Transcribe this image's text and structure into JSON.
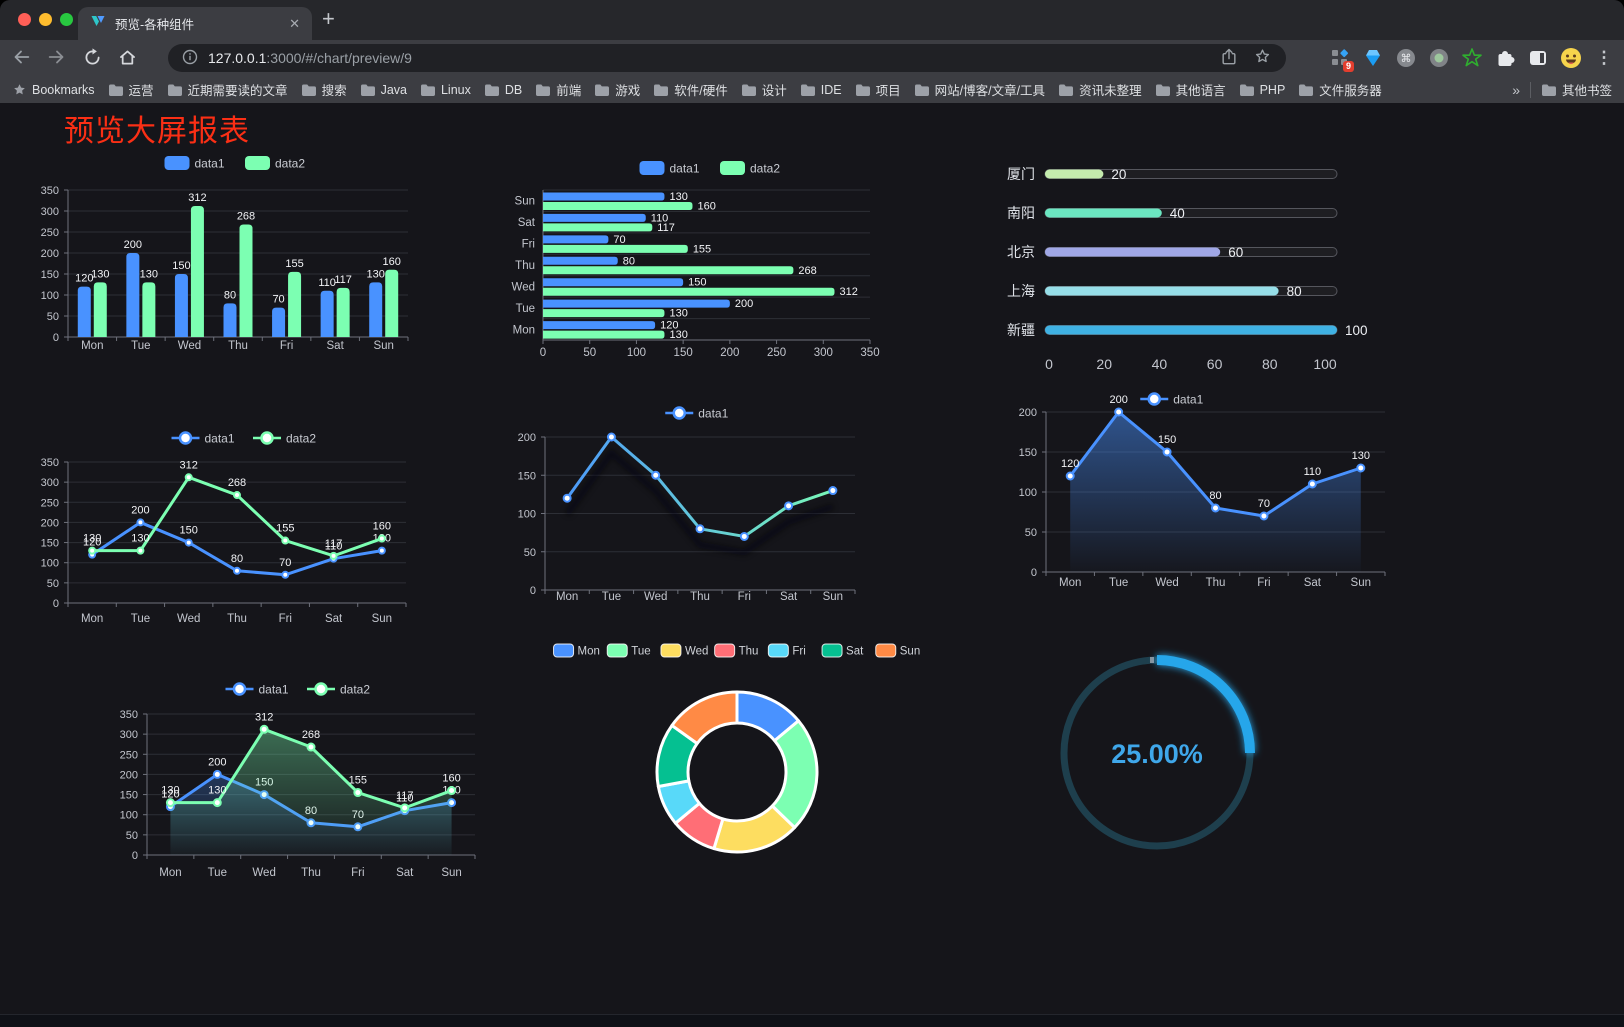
{
  "browser": {
    "window_controls": [
      "#ff5f57",
      "#febc2e",
      "#28c840"
    ],
    "tab": {
      "title": "预览-各种组件",
      "close_glyph": "✕",
      "new_tab_glyph": "+"
    },
    "address": {
      "host": "127.0.0.1",
      "rest": ":3000/#/chart/preview/9"
    },
    "bookmarks_label": "Bookmarks",
    "bookmarks": [
      "运营",
      "近期需要读的文章",
      "搜索",
      "Java",
      "Linux",
      "DB",
      "前端",
      "游戏",
      "软件/硬件",
      "设计",
      "IDE",
      "项目",
      "网站/博客/文章/工具",
      "资讯未整理",
      "其他语言",
      "PHP",
      "文件服务器"
    ],
    "overflow_glyph": "»",
    "other_bookmarks": "其他书签",
    "extension_badge": "9",
    "menu_glyph": "⋮"
  },
  "page": {
    "title": "预览大屏报表",
    "title_color": "#fb2f15",
    "background": "#15151a"
  },
  "chart_data": [
    {
      "id": "bar-vertical",
      "type": "bar",
      "title": "",
      "categories": [
        "Mon",
        "Tue",
        "Wed",
        "Thu",
        "Fri",
        "Sat",
        "Sun"
      ],
      "series": [
        {
          "name": "data1",
          "color": "#4992ff",
          "values": [
            120,
            200,
            150,
            80,
            70,
            110,
            130
          ]
        },
        {
          "name": "data2",
          "color": "#7cffb2",
          "values": [
            130,
            130,
            312,
            268,
            155,
            117,
            160
          ]
        }
      ],
      "ylim": [
        0,
        350
      ],
      "ytick": 50,
      "legend_position": "top",
      "grid": true,
      "value_labels": true
    },
    {
      "id": "bar-horizontal",
      "type": "bar",
      "orientation": "horizontal",
      "categories_top_to_bottom": [
        "Sun",
        "Sat",
        "Fri",
        "Thu",
        "Wed",
        "Tue",
        "Mon"
      ],
      "series": [
        {
          "name": "data1",
          "color": "#4992ff",
          "values": [
            120,
            200,
            150,
            80,
            70,
            110,
            130
          ]
        },
        {
          "name": "data2",
          "color": "#7cffb2",
          "values": [
            130,
            130,
            312,
            268,
            155,
            117,
            160
          ]
        }
      ],
      "series_value_order": [
        "Mon",
        "Tue",
        "Wed",
        "Thu",
        "Fri",
        "Sat",
        "Sun"
      ],
      "xlim": [
        0,
        350
      ],
      "xtick": 50,
      "legend_position": "top",
      "value_labels": true
    },
    {
      "id": "progress-list",
      "type": "bar",
      "orientation": "horizontal-progress",
      "items": [
        {
          "label": "厦门",
          "value": 20,
          "color": "#c4ebad"
        },
        {
          "label": "南阳",
          "value": 40,
          "color": "#6be6c1"
        },
        {
          "label": "北京",
          "value": 60,
          "color": "#a0a7e6"
        },
        {
          "label": "上海",
          "value": 80,
          "color": "#96dee8"
        },
        {
          "label": "新疆",
          "value": 100,
          "color": "#3fb1e3"
        }
      ],
      "xlim": [
        0,
        100
      ],
      "xticks": [
        0,
        20,
        40,
        60,
        80,
        100
      ]
    },
    {
      "id": "line-dual",
      "type": "line",
      "categories": [
        "Mon",
        "Tue",
        "Wed",
        "Thu",
        "Fri",
        "Sat",
        "Sun"
      ],
      "series": [
        {
          "name": "data1",
          "color": "#4992ff",
          "values": [
            120,
            200,
            150,
            80,
            70,
            110,
            130
          ]
        },
        {
          "name": "data2",
          "color": "#7cffb2",
          "values": [
            130,
            130,
            312,
            268,
            155,
            117,
            160
          ]
        }
      ],
      "ylim": [
        0,
        350
      ],
      "ytick": 50,
      "legend_position": "top",
      "value_labels": true
    },
    {
      "id": "line-gradient",
      "type": "line",
      "categories": [
        "Mon",
        "Tue",
        "Wed",
        "Thu",
        "Fri",
        "Sat",
        "Sun"
      ],
      "series": [
        {
          "name": "data1",
          "color_gradient": [
            "#4992ff",
            "#7cffb2"
          ],
          "marker_color": "#4992ff",
          "values": [
            120,
            200,
            150,
            80,
            70,
            110,
            130
          ]
        }
      ],
      "ylim": [
        0,
        200
      ],
      "ytick": 50,
      "legend_position": "top",
      "value_labels": false,
      "shadow": true
    },
    {
      "id": "area-single",
      "type": "area",
      "categories": [
        "Mon",
        "Tue",
        "Wed",
        "Thu",
        "Fri",
        "Sat",
        "Sun"
      ],
      "series": [
        {
          "name": "data1",
          "color": "#4992ff",
          "fill_from": "rgba(73,146,255,0.5)",
          "fill_to": "rgba(73,146,255,0.02)",
          "values": [
            120,
            200,
            150,
            80,
            70,
            110,
            130
          ]
        }
      ],
      "ylim": [
        0,
        200
      ],
      "ytick": 50,
      "legend_position": "top",
      "value_labels": true
    },
    {
      "id": "area-dual",
      "type": "area",
      "categories": [
        "Mon",
        "Tue",
        "Wed",
        "Thu",
        "Fri",
        "Sat",
        "Sun"
      ],
      "series": [
        {
          "name": "data1",
          "color": "#4992ff",
          "fill_from": "rgba(73,146,255,0.48)",
          "fill_to": "rgba(73,146,255,0.02)",
          "values": [
            120,
            200,
            150,
            80,
            70,
            110,
            130
          ]
        },
        {
          "name": "data2",
          "color": "#7cffb2",
          "fill_from": "rgba(124,255,178,0.42)",
          "fill_to": "rgba(124,255,178,0.02)",
          "values": [
            130,
            130,
            312,
            268,
            155,
            117,
            160
          ]
        }
      ],
      "ylim": [
        0,
        350
      ],
      "ytick": 50,
      "legend_position": "top",
      "value_labels": true
    },
    {
      "id": "donut",
      "type": "pie",
      "donut": true,
      "border_color": "#ffffff",
      "legend_position": "top",
      "slices": [
        {
          "label": "Mon",
          "value": 120,
          "color": "#4992ff"
        },
        {
          "label": "Tue",
          "value": 200,
          "color": "#7cffb2"
        },
        {
          "label": "Wed",
          "value": 150,
          "color": "#fddd60"
        },
        {
          "label": "Thu",
          "value": 80,
          "color": "#ff6e76"
        },
        {
          "label": "Fri",
          "value": 70,
          "color": "#58d9f9"
        },
        {
          "label": "Sat",
          "value": 110,
          "color": "#05c091"
        },
        {
          "label": "Sun",
          "value": 130,
          "color": "#ff8a45"
        }
      ]
    },
    {
      "id": "gauge",
      "type": "pie",
      "variant": "progress-ring",
      "value": 25,
      "max": 100,
      "label": "25.00%",
      "color": "#25a6ea",
      "track_color": "#1e3f4d",
      "label_color": "#3fa7ea"
    }
  ]
}
